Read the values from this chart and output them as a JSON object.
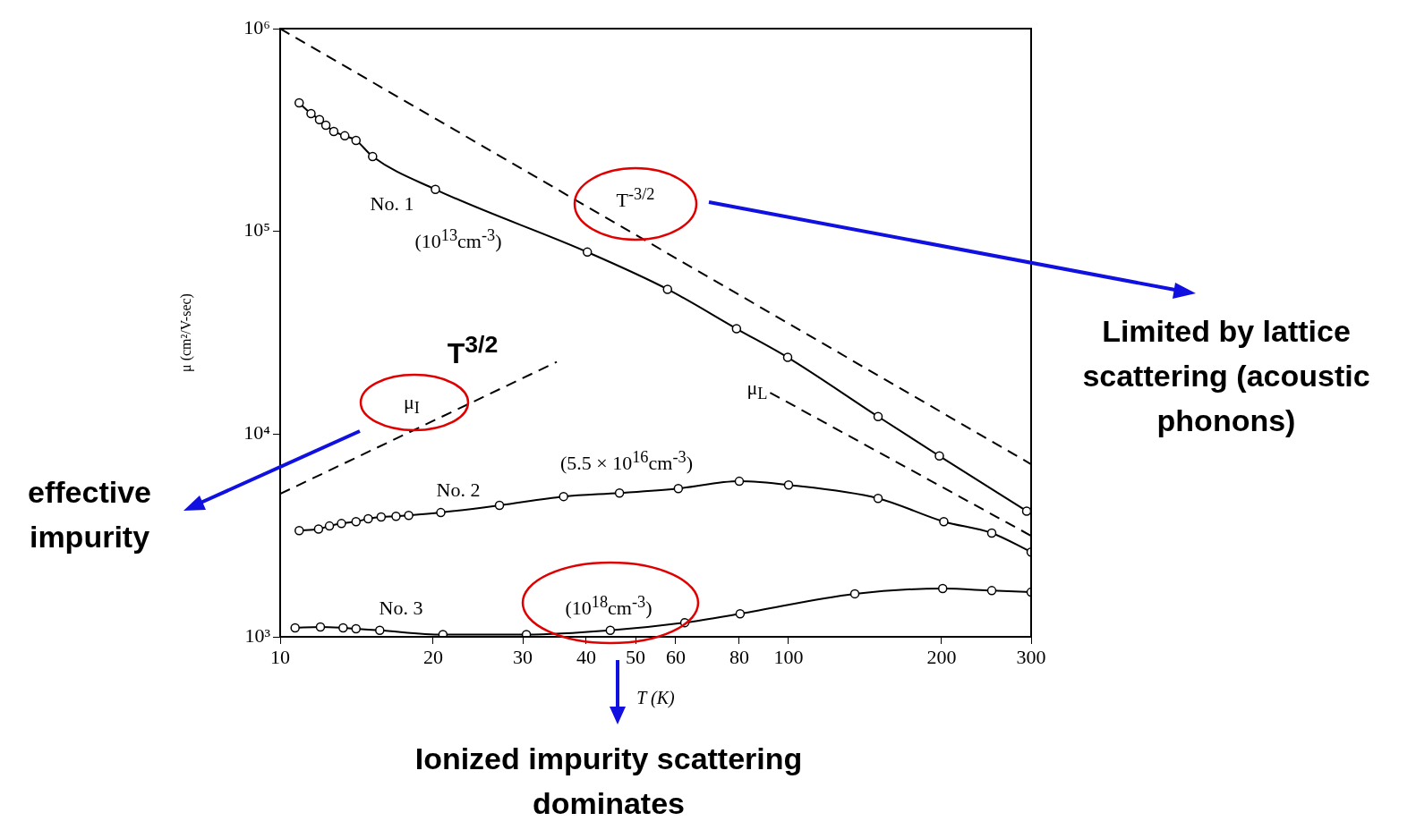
{
  "chart_data": {
    "type": "line",
    "xlabel": "T (K)",
    "ylabel": "μ (cm²/V-sec)",
    "log": "xy",
    "grid": false,
    "xlim": [
      10,
      300
    ],
    "ylim": [
      1000,
      1000000
    ],
    "xticks": [
      10,
      20,
      30,
      40,
      50,
      60,
      80,
      100,
      200,
      300
    ],
    "yticks": [
      {
        "value": 1000,
        "label": "10³"
      },
      {
        "value": 10000,
        "label": "10⁴"
      },
      {
        "value": 100000,
        "label": "10⁵"
      },
      {
        "value": 1000000,
        "label": "10⁶"
      }
    ],
    "series": [
      {
        "color": "#000000",
        "marker": "circle",
        "line_style": "solid",
        "x": [
          10.9,
          11.5,
          11.95,
          12.3,
          12.75,
          13.4,
          14.1,
          15.2,
          20.2,
          40.2,
          57.8,
          79,
          99.6,
          150,
          198,
          294
        ],
        "values": [
          430000,
          381000,
          356000,
          334000,
          311000,
          296000,
          281000,
          234000,
          161000,
          79000,
          51800,
          33100,
          23900,
          12200,
          7800,
          4170
        ]
      },
      {
        "color": "#000000",
        "marker": "none",
        "line_style": "dashed",
        "x": [
          10,
          300
        ],
        "values": [
          1000000,
          7100
        ]
      },
      {
        "color": "#000000",
        "marker": "none",
        "line_style": "dashed",
        "x": [
          92,
          300
        ],
        "values": [
          16000,
          3150
        ]
      },
      {
        "color": "#000000",
        "marker": "none",
        "line_style": "dashed",
        "x": [
          10,
          35
        ],
        "values": [
          5070,
          22700
        ]
      },
      {
        "color": "#000000",
        "marker": "circle",
        "line_style": "solid",
        "x": [
          10.9,
          11.9,
          12.5,
          13.2,
          14.1,
          14.9,
          15.8,
          16.9,
          17.9,
          20.7,
          27,
          36.1,
          46.5,
          60.7,
          80,
          100,
          150,
          202,
          251,
          300
        ],
        "values": [
          3340,
          3400,
          3520,
          3620,
          3700,
          3820,
          3900,
          3930,
          3970,
          4100,
          4450,
          4920,
          5120,
          5390,
          5850,
          5610,
          4820,
          3700,
          3250,
          2620
        ]
      },
      {
        "color": "#000000",
        "marker": "circle",
        "line_style": "solid",
        "x": [
          10.7,
          12,
          13.3,
          14.1,
          15.7,
          20.9,
          30.5,
          44.6,
          62.5,
          80.3,
          135,
          201,
          251,
          300
        ],
        "values": [
          1107,
          1118,
          1107,
          1096,
          1076,
          1025,
          1025,
          1076,
          1175,
          1300,
          1630,
          1730,
          1690,
          1660
        ]
      }
    ],
    "annotations": [
      "No. 1",
      "(10$^{13}$cm$^{-3}$)",
      "T$^{-3/2}$",
      "μ$_{L}$",
      "T$^{3/2}$",
      "μ$_{I}$",
      "No. 2",
      "(5.5 × 10$^{16}$cm$^{-3}$)",
      "No. 3",
      "(10$^{18}$cm$^{-3}$)",
      "Limited by lattice scattering (acoustic phonons)",
      "effective impurity",
      "Ionized impurity scattering dominates"
    ]
  }
}
